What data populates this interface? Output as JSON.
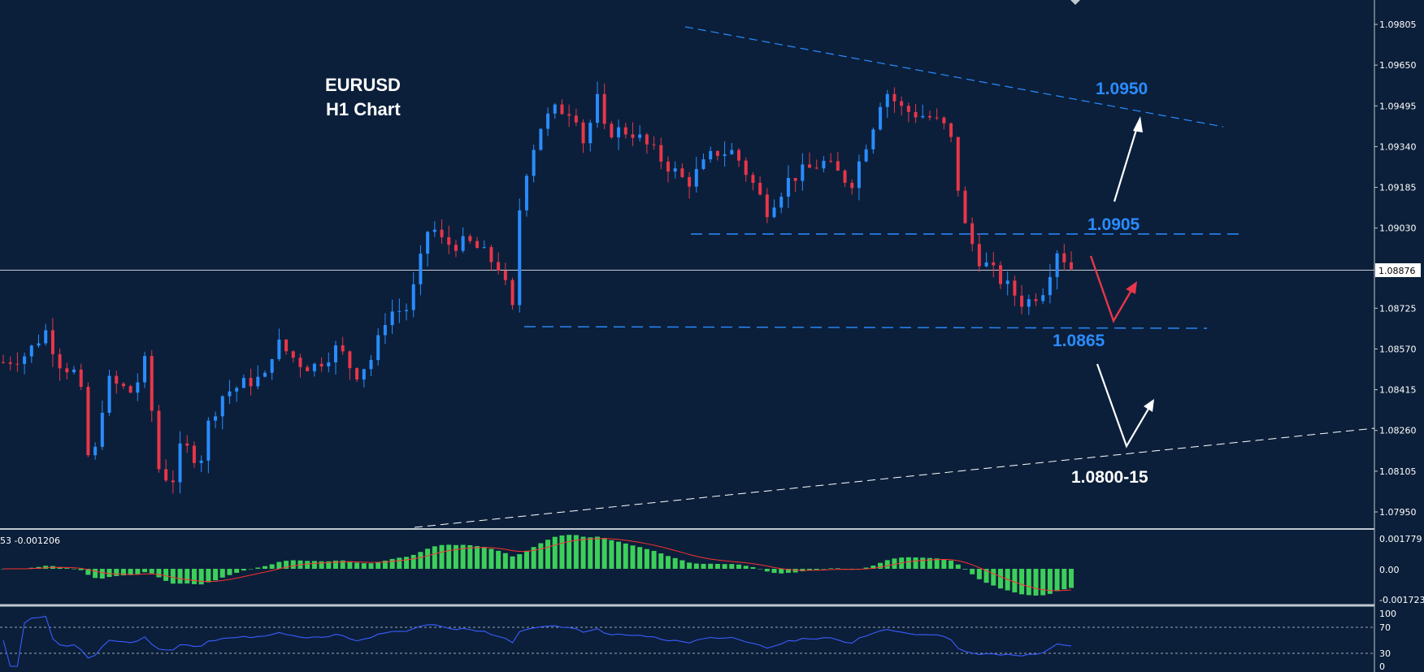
{
  "chart_data": [
    {
      "type": "candlestick",
      "title": "EURUSD",
      "subtitle": "H1 Chart",
      "ylim": [
        1.0787,
        1.099
      ],
      "price_ticks": [
        "1.09805",
        "1.09650",
        "1.09495",
        "1.09340",
        "1.09185",
        "1.09030",
        "1.08876",
        "1.08725",
        "1.08570",
        "1.08415",
        "1.08260",
        "1.08105",
        "1.07950"
      ],
      "current_price": "1.08876",
      "candle_count": 152,
      "path_points": [
        [
          0,
          1.0852
        ],
        [
          5,
          1.0855
        ],
        [
          9,
          1.0864
        ],
        [
          12,
          1.0852
        ],
        [
          16,
          1.0847
        ],
        [
          17,
          1.0835
        ],
        [
          18,
          1.0817
        ],
        [
          19,
          1.0811
        ],
        [
          22,
          1.0845
        ],
        [
          28,
          1.084
        ],
        [
          30,
          1.0854
        ],
        [
          32,
          1.083
        ],
        [
          33,
          1.0812
        ],
        [
          36,
          1.0806
        ],
        [
          38,
          1.082
        ],
        [
          40,
          1.0818
        ],
        [
          42,
          1.0814
        ],
        [
          44,
          1.083
        ],
        [
          47,
          1.084
        ],
        [
          53,
          1.0845
        ],
        [
          56,
          1.0846
        ],
        [
          58,
          1.086
        ],
        [
          63,
          1.0852
        ],
        [
          66,
          1.085
        ],
        [
          71,
          1.0857
        ],
        [
          73,
          1.0854
        ],
        [
          75,
          1.0847
        ],
        [
          79,
          1.0854
        ],
        [
          82,
          1.0871
        ],
        [
          86,
          1.0872
        ],
        [
          88,
          1.0882
        ],
        [
          91,
          1.0905
        ],
        [
          94,
          1.0897
        ],
        [
          100,
          1.0897
        ],
        [
          106,
          1.0888
        ],
        [
          109,
          1.087
        ],
        [
          110,
          1.0908
        ],
        [
          112,
          1.0928
        ],
        [
          115,
          1.0943
        ],
        [
          118,
          1.0948
        ],
        [
          122,
          1.0948
        ],
        [
          124,
          1.0935
        ],
        [
          125,
          1.0935
        ],
        [
          126,
          1.096
        ],
        [
          128,
          1.094
        ],
        [
          134,
          1.094
        ],
        [
          140,
          1.093
        ],
        [
          146,
          1.092
        ],
        [
          152,
          1.0932
        ],
        [
          156,
          1.0932
        ],
        [
          160,
          1.092
        ],
        [
          163,
          1.091
        ],
        [
          168,
          1.0922
        ],
        [
          175,
          1.0928
        ],
        [
          181,
          1.092
        ],
        [
          186,
          1.0944
        ],
        [
          188,
          1.0956
        ],
        [
          192,
          1.0948
        ],
        [
          198,
          1.0945
        ],
        [
          202,
          1.094
        ],
        [
          205,
          1.0905
        ],
        [
          208,
          1.0892
        ],
        [
          212,
          1.0885
        ],
        [
          218,
          1.0874
        ],
        [
          222,
          1.088
        ],
        [
          225,
          1.0895
        ],
        [
          228,
          1.0888
        ]
      ],
      "macd": {
        "value_text": "53 -0.001206",
        "scale": [
          "0.001779",
          "0.00",
          "-0.001723"
        ]
      },
      "rsi": {
        "scale": [
          "100",
          "70",
          "30",
          "0"
        ],
        "levels": [
          70,
          30
        ]
      },
      "levels": [
        {
          "label": "1.0950",
          "color": "#2a8cff"
        },
        {
          "label": "1.0905",
          "color": "#2a8cff"
        },
        {
          "label": "1.0865",
          "color": "#2a8cff"
        },
        {
          "label": "1.0800-15",
          "color": "#ffffff"
        }
      ],
      "colors": {
        "bull": "#2a8cff",
        "bear": "#e8364a",
        "background": "#0b1f3a",
        "macd_hist": "#3ccf5a",
        "macd_signal": "#ff3030",
        "rsi_line": "#3a5cff"
      }
    }
  ]
}
